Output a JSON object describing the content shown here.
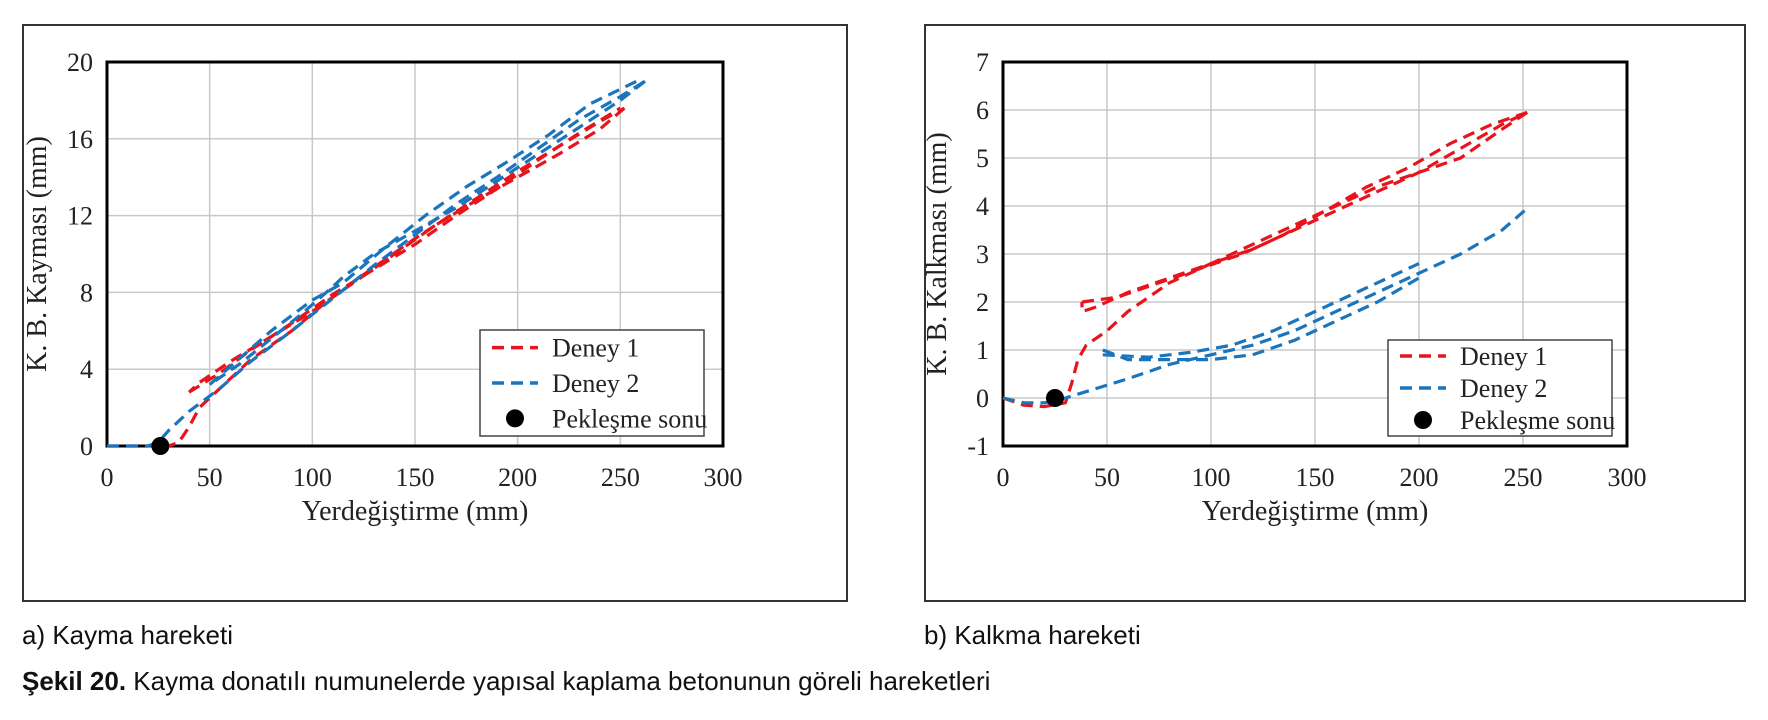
{
  "chart_data": [
    {
      "type": "line",
      "panel_caption": "a) Kayma hareketi",
      "xlabel": "Yerdeğiştirme (mm)",
      "ylabel": "K. B. Kayması (mm)",
      "xlim": [
        0,
        300
      ],
      "ylim": [
        0,
        20
      ],
      "xticks": [
        0,
        50,
        100,
        150,
        200,
        250,
        300
      ],
      "yticks": [
        0,
        4,
        8,
        12,
        16,
        20
      ],
      "grid": true,
      "legend_position": "bottom-right",
      "series": [
        {
          "name": "Deney 1",
          "color": "#e8141c",
          "style": "dashed",
          "paths": [
            [
              [
                0,
                0
              ],
              [
                20,
                0
              ],
              [
                30,
                0
              ],
              [
                35,
                0.2
              ],
              [
                40,
                1.0
              ],
              [
                45,
                2.0
              ],
              [
                55,
                3.0
              ],
              [
                70,
                4.5
              ],
              [
                90,
                6.0
              ],
              [
                110,
                7.8
              ],
              [
                130,
                9.3
              ],
              [
                150,
                10.8
              ],
              [
                170,
                12.2
              ],
              [
                190,
                13.6
              ],
              [
                200,
                14.3
              ],
              [
                220,
                15.6
              ],
              [
                240,
                16.9
              ],
              [
                252,
                17.6
              ]
            ],
            [
              [
                252,
                17.6
              ],
              [
                240,
                16.5
              ],
              [
                220,
                15.2
              ],
              [
                200,
                14.0
              ],
              [
                180,
                12.8
              ],
              [
                160,
                11.5
              ],
              [
                140,
                10.0
              ],
              [
                120,
                8.5
              ],
              [
                100,
                7.0
              ],
              [
                80,
                5.7
              ],
              [
                60,
                4.4
              ],
              [
                45,
                3.3
              ],
              [
                40,
                2.8
              ]
            ],
            [
              [
                40,
                2.8
              ],
              [
                55,
                3.8
              ],
              [
                70,
                5.0
              ],
              [
                90,
                6.4
              ],
              [
                110,
                7.9
              ],
              [
                130,
                9.2
              ],
              [
                150,
                10.5
              ],
              [
                170,
                12.0
              ],
              [
                190,
                13.4
              ],
              [
                210,
                14.9
              ],
              [
                230,
                16.3
              ],
              [
                250,
                17.6
              ]
            ]
          ]
        },
        {
          "name": "Deney 2",
          "color": "#1b75bc",
          "style": "dashed",
          "paths": [
            [
              [
                0,
                0
              ],
              [
                10,
                0
              ],
              [
                20,
                0
              ],
              [
                25,
                0.2
              ],
              [
                30,
                0.8
              ],
              [
                40,
                1.8
              ],
              [
                55,
                3.0
              ],
              [
                70,
                4.4
              ],
              [
                90,
                6.0
              ],
              [
                110,
                7.7
              ],
              [
                130,
                9.4
              ],
              [
                150,
                11.0
              ],
              [
                170,
                12.6
              ],
              [
                190,
                14.0
              ],
              [
                210,
                15.5
              ],
              [
                230,
                17.0
              ],
              [
                250,
                18.2
              ],
              [
                262,
                19.0
              ]
            ],
            [
              [
                262,
                19.0
              ],
              [
                250,
                18.0
              ],
              [
                230,
                16.6
              ],
              [
                210,
                15.2
              ],
              [
                190,
                13.8
              ],
              [
                170,
                12.4
              ],
              [
                150,
                11.2
              ],
              [
                130,
                10.0
              ],
              [
                115,
                8.8
              ],
              [
                110,
                8.3
              ],
              [
                95,
                6.9
              ],
              [
                80,
                5.6
              ],
              [
                65,
                4.3
              ],
              [
                50,
                3.2
              ]
            ],
            [
              [
                50,
                3.2
              ],
              [
                65,
                4.6
              ],
              [
                80,
                6.0
              ],
              [
                100,
                7.6
              ],
              [
                115,
                8.5
              ],
              [
                135,
                10.3
              ],
              [
                155,
                12.0
              ],
              [
                175,
                13.5
              ],
              [
                195,
                14.8
              ],
              [
                215,
                16.2
              ],
              [
                235,
                17.8
              ],
              [
                258,
                19.0
              ]
            ]
          ]
        }
      ],
      "marker": {
        "name": "Pekleşme sonu",
        "x": 26,
        "y": 0,
        "color": "#000000"
      }
    },
    {
      "type": "line",
      "panel_caption": "b) Kalkma hareketi",
      "xlabel": "Yerdeğiştirme (mm)",
      "ylabel": "K. B. Kalkması (mm)",
      "xlim": [
        0,
        300
      ],
      "ylim": [
        -1,
        7
      ],
      "xticks": [
        0,
        50,
        100,
        150,
        200,
        250,
        300
      ],
      "yticks": [
        -1,
        0,
        1,
        2,
        3,
        4,
        5,
        6,
        7
      ],
      "grid": true,
      "legend_position": "bottom-right",
      "series": [
        {
          "name": "Deney 1",
          "color": "#e8141c",
          "style": "dashed",
          "paths": [
            [
              [
                0,
                0
              ],
              [
                10,
                -0.15
              ],
              [
                20,
                -0.18
              ],
              [
                30,
                -0.1
              ],
              [
                33,
                0.3
              ],
              [
                36,
                0.8
              ],
              [
                40,
                1.1
              ],
              [
                50,
                1.4
              ],
              [
                60,
                1.8
              ],
              [
                70,
                2.1
              ],
              [
                80,
                2.4
              ],
              [
                100,
                2.8
              ],
              [
                120,
                3.1
              ],
              [
                140,
                3.5
              ],
              [
                160,
                3.9
              ],
              [
                180,
                4.3
              ],
              [
                200,
                4.7
              ],
              [
                220,
                5.2
              ],
              [
                240,
                5.7
              ],
              [
                252,
                5.95
              ]
            ],
            [
              [
                252,
                5.95
              ],
              [
                240,
                5.6
              ],
              [
                220,
                5.0
              ],
              [
                200,
                4.7
              ],
              [
                180,
                4.4
              ],
              [
                160,
                4.0
              ],
              [
                140,
                3.6
              ],
              [
                120,
                3.2
              ],
              [
                100,
                2.8
              ],
              [
                80,
                2.5
              ],
              [
                60,
                2.2
              ],
              [
                45,
                1.9
              ],
              [
                38,
                1.8
              ],
              [
                38,
                2.0
              ]
            ],
            [
              [
                38,
                2.0
              ],
              [
                55,
                2.1
              ],
              [
                75,
                2.4
              ],
              [
                95,
                2.7
              ],
              [
                115,
                3.0
              ],
              [
                135,
                3.4
              ],
              [
                155,
                3.9
              ],
              [
                175,
                4.4
              ],
              [
                195,
                4.8
              ],
              [
                215,
                5.3
              ],
              [
                235,
                5.7
              ],
              [
                252,
                5.95
              ]
            ]
          ]
        },
        {
          "name": "Deney 2",
          "color": "#1b75bc",
          "style": "dashed",
          "paths": [
            [
              [
                0,
                0
              ],
              [
                10,
                -0.1
              ],
              [
                20,
                -0.1
              ],
              [
                30,
                0.0
              ],
              [
                45,
                0.2
              ],
              [
                60,
                0.4
              ],
              [
                80,
                0.7
              ],
              [
                100,
                0.9
              ],
              [
                120,
                1.1
              ],
              [
                140,
                1.4
              ],
              [
                160,
                1.8
              ],
              [
                180,
                2.2
              ],
              [
                200,
                2.6
              ],
              [
                220,
                3.0
              ],
              [
                240,
                3.5
              ],
              [
                252,
                3.95
              ]
            ],
            [
              [
                48,
                1.0
              ],
              [
                60,
                0.8
              ],
              [
                80,
                0.8
              ],
              [
                100,
                0.8
              ],
              [
                120,
                0.9
              ],
              [
                140,
                1.2
              ],
              [
                160,
                1.6
              ],
              [
                180,
                2.0
              ],
              [
                200,
                2.5
              ]
            ],
            [
              [
                48,
                0.9
              ],
              [
                70,
                0.85
              ],
              [
                90,
                0.95
              ],
              [
                110,
                1.1
              ],
              [
                130,
                1.4
              ],
              [
                150,
                1.8
              ],
              [
                170,
                2.2
              ],
              [
                190,
                2.6
              ],
              [
                200,
                2.8
              ]
            ]
          ]
        }
      ],
      "marker": {
        "name": "Pekleşme sonu",
        "x": 25,
        "y": 0,
        "color": "#000000"
      }
    }
  ],
  "captions": {
    "panel_a": "a) Kayma hareketi",
    "panel_b": "b) Kalkma hareketi",
    "figure_number": "Şekil 20.",
    "figure_text": " Kayma donatılı numunelerde yapısal kaplama betonunun göreli hareketleri"
  }
}
